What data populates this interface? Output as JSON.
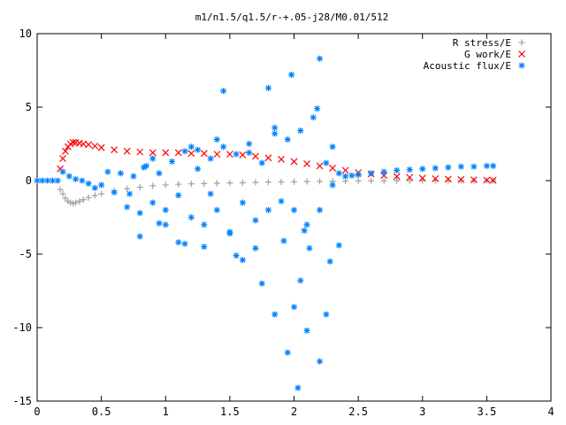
{
  "chart_data": {
    "type": "scatter",
    "title": "m1/n1.5/q1.5/r-+.05-j28/M0.01/512",
    "xlabel": "",
    "ylabel": "",
    "xlim": [
      0,
      4
    ],
    "ylim": [
      -15,
      10
    ],
    "xticks": [
      0,
      0.5,
      1,
      1.5,
      2,
      2.5,
      3,
      3.5,
      4
    ],
    "xtick_labels": [
      "0",
      "0.5",
      "1",
      "1.5",
      "2",
      "2.5",
      "3",
      "3.5",
      "4"
    ],
    "yticks": [
      -15,
      -10,
      -5,
      0,
      5,
      10
    ],
    "ytick_labels": [
      "-15",
      "-10",
      "-5",
      "0",
      "5",
      "10"
    ],
    "grid": false,
    "legend_position": "top-right",
    "series": [
      {
        "name": "R stress/E",
        "color": "#a0a0a0",
        "marker": "plus",
        "x": [
          0.18,
          0.2,
          0.22,
          0.24,
          0.26,
          0.28,
          0.3,
          0.33,
          0.36,
          0.4,
          0.45,
          0.5,
          0.6,
          0.7,
          0.8,
          0.9,
          1.0,
          1.1,
          1.2,
          1.3,
          1.4,
          1.5,
          1.6,
          1.7,
          1.8,
          1.9,
          2.0,
          2.1,
          2.2,
          2.3,
          2.4,
          2.5,
          2.6,
          2.7,
          2.8,
          2.9,
          3.0,
          3.1,
          3.2,
          3.3,
          3.4,
          3.5,
          3.55
        ],
        "y": [
          -0.6,
          -0.9,
          -1.2,
          -1.4,
          -1.5,
          -1.55,
          -1.5,
          -1.4,
          -1.3,
          -1.15,
          -1.0,
          -0.9,
          -0.7,
          -0.55,
          -0.45,
          -0.35,
          -0.3,
          -0.25,
          -0.22,
          -0.2,
          -0.18,
          -0.16,
          -0.14,
          -0.12,
          -0.1,
          -0.09,
          -0.08,
          -0.06,
          -0.05,
          -0.04,
          -0.03,
          -0.02,
          -0.01,
          -0.01,
          0,
          0,
          0,
          0,
          0,
          0,
          0,
          0,
          0
        ]
      },
      {
        "name": "G work/E",
        "color": "#ff0000",
        "marker": "cross",
        "x": [
          0.18,
          0.2,
          0.22,
          0.24,
          0.26,
          0.28,
          0.3,
          0.33,
          0.36,
          0.4,
          0.45,
          0.5,
          0.6,
          0.7,
          0.8,
          0.9,
          1.0,
          1.1,
          1.2,
          1.3,
          1.4,
          1.5,
          1.6,
          1.7,
          1.8,
          1.9,
          2.0,
          2.1,
          2.2,
          2.3,
          2.4,
          2.5,
          2.6,
          2.7,
          2.8,
          2.9,
          3.0,
          3.1,
          3.2,
          3.3,
          3.4,
          3.5,
          3.55
        ],
        "y": [
          0.8,
          1.5,
          2.0,
          2.3,
          2.5,
          2.6,
          2.6,
          2.55,
          2.5,
          2.45,
          2.35,
          2.25,
          2.1,
          2.0,
          1.95,
          1.9,
          1.9,
          1.9,
          1.85,
          1.85,
          1.8,
          1.8,
          1.75,
          1.65,
          1.55,
          1.45,
          1.3,
          1.15,
          1.0,
          0.85,
          0.7,
          0.55,
          0.45,
          0.35,
          0.28,
          0.22,
          0.17,
          0.13,
          0.1,
          0.07,
          0.05,
          0.03,
          0.02
        ]
      },
      {
        "name": "Acoustic flux/E",
        "color": "#0080ff",
        "marker": "star",
        "x": [
          0.0,
          0.04,
          0.08,
          0.12,
          0.16,
          0.2,
          0.25,
          0.3,
          0.35,
          0.4,
          0.45,
          0.5,
          0.55,
          0.6,
          0.65,
          0.7,
          0.75,
          0.8,
          0.85,
          0.9,
          0.95,
          1.0,
          1.05,
          1.1,
          1.15,
          1.2,
          1.25,
          1.3,
          1.35,
          1.4,
          1.45,
          1.5,
          1.55,
          1.6,
          1.65,
          1.7,
          1.75,
          1.8,
          1.85,
          1.9,
          1.95,
          2.0,
          2.05,
          2.1,
          2.15,
          2.2,
          2.25,
          2.3,
          2.35,
          2.4,
          2.45,
          2.5,
          2.6,
          2.7,
          2.8,
          2.9,
          3.0,
          3.1,
          3.2,
          3.3,
          3.4,
          3.5,
          3.55,
          0.72,
          0.8,
          0.9,
          1.0,
          1.1,
          1.2,
          1.3,
          1.45,
          1.5,
          1.6,
          1.7,
          1.8,
          1.85,
          1.92,
          1.98,
          2.03,
          2.05,
          2.1,
          2.2,
          2.25,
          2.35,
          0.83,
          1.15,
          1.4,
          1.55,
          1.75,
          2.0,
          2.12,
          2.2,
          2.3,
          1.25,
          1.65,
          1.95,
          2.18,
          0.95,
          1.35,
          1.85,
          2.08,
          2.28
        ],
        "y": [
          0,
          0,
          0,
          0,
          0,
          0.6,
          0.3,
          0.1,
          0,
          -0.2,
          -0.5,
          -0.3,
          0.6,
          -0.8,
          0.5,
          -1.8,
          0.3,
          -2.2,
          1.0,
          -1.5,
          0.5,
          -2.0,
          1.3,
          -1.0,
          2.0,
          -2.5,
          0.8,
          -3.0,
          1.5,
          -2.0,
          2.3,
          -3.5,
          1.8,
          -1.5,
          2.5,
          -2.7,
          1.2,
          -2.0,
          3.2,
          -1.4,
          2.8,
          -2.0,
          3.4,
          -3.0,
          4.3,
          -2.0,
          1.2,
          -0.3,
          0.5,
          0.3,
          0.35,
          0.4,
          0.5,
          0.6,
          0.7,
          0.75,
          0.8,
          0.85,
          0.9,
          0.95,
          0.95,
          1.0,
          1.0,
          -0.9,
          -3.8,
          1.5,
          -3.0,
          -4.2,
          2.3,
          -4.5,
          6.1,
          -3.6,
          -5.4,
          -4.6,
          6.3,
          -9.1,
          -4.1,
          7.2,
          -14.1,
          -6.8,
          -10.2,
          8.3,
          -9.1,
          -4.4,
          0.9,
          -4.3,
          2.8,
          -5.1,
          -7.0,
          -8.6,
          -4.6,
          -12.3,
          2.3,
          2.1,
          1.9,
          -11.7,
          4.9,
          -2.9,
          -0.9,
          3.6,
          -3.4,
          -5.5
        ]
      }
    ]
  }
}
